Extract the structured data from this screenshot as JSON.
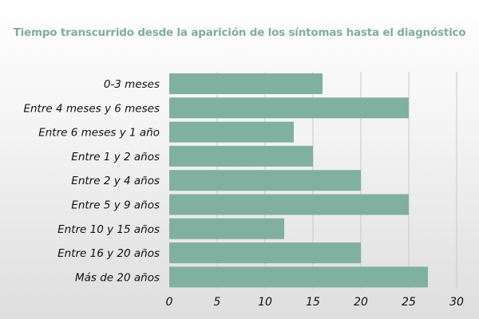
{
  "chart_data": {
    "type": "bar",
    "orientation": "horizontal",
    "title": "Tiempo transcurrido desde la aparición de los síntomas hasta el diagnóstico",
    "categories": [
      "0-3 meses",
      "Entre 4 meses y 6 meses",
      "Entre 6 meses y 1 año",
      "Entre 1 y 2 años",
      "Entre 2 y 4 años",
      "Entre 5 y 9 años",
      "Entre 10 y 15 años",
      "Entre 16 y 20 años",
      "Más de 20 años"
    ],
    "values": [
      16,
      25,
      13,
      15,
      20,
      25,
      12,
      20,
      27
    ],
    "xlim": [
      0,
      30
    ],
    "xticks": [
      "0",
      "5",
      "10",
      "15",
      "20",
      "25",
      "30"
    ],
    "xlabel": "",
    "ylabel": "",
    "grid": "vertical",
    "bar_color": "#80b0a0",
    "title_color": "#7fae9c"
  }
}
